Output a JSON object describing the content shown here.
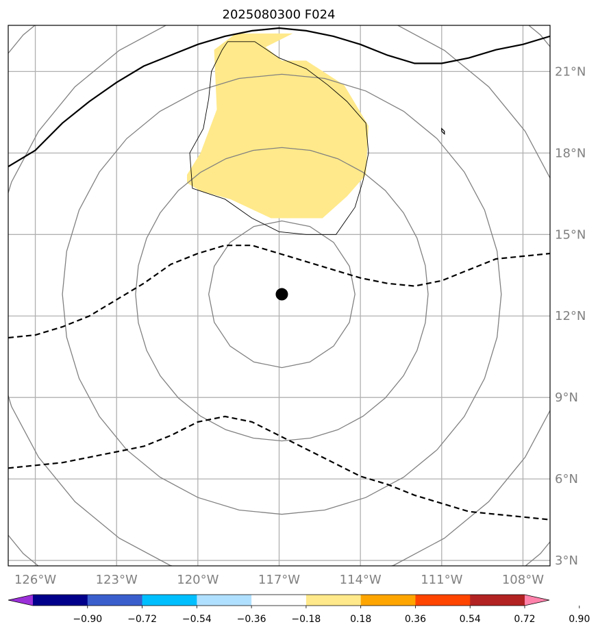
{
  "chart_data": {
    "type": "map-contour",
    "title": "2025080300 F024",
    "projection": "lat-lon",
    "xlim": [
      -127,
      -107
    ],
    "ylim": [
      2.8,
      22.7
    ],
    "lon_ticks": [
      -126,
      -123,
      -120,
      -117,
      -114,
      -111,
      -108
    ],
    "lon_tick_labels": [
      "126°W",
      "123°W",
      "120°W",
      "117°W",
      "114°W",
      "111°W",
      "108°W"
    ],
    "lat_ticks": [
      3,
      6,
      9,
      12,
      15,
      18,
      21
    ],
    "lat_tick_labels": [
      "3°N",
      "6°N",
      "9°N",
      "12°N",
      "15°N",
      "18°N",
      "21°N"
    ],
    "grid": true,
    "center_point": {
      "lon": -116.9,
      "lat": 12.8
    },
    "range_circles_deg": [
      2.7,
      5.4,
      8.1,
      10.8,
      13.5
    ],
    "shaded_region": {
      "level_range": [
        0.18,
        0.36
      ],
      "color": "#ffe98a",
      "outline": [
        [
          -116.5,
          22.4
        ],
        [
          -118.6,
          22.4
        ],
        [
          -119.4,
          21.8
        ],
        [
          -119.3,
          19.6
        ],
        [
          -119.9,
          18.0
        ],
        [
          -120.4,
          17.2
        ],
        [
          -120.4,
          16.9
        ],
        [
          -119.9,
          16.6
        ],
        [
          -118.8,
          16.3
        ],
        [
          -117.3,
          15.6
        ],
        [
          -115.4,
          15.6
        ],
        [
          -114.5,
          16.4
        ],
        [
          -113.8,
          17.2
        ],
        [
          -113.7,
          19.0
        ],
        [
          -114.6,
          20.5
        ],
        [
          -116.0,
          21.4
        ],
        [
          -116.9,
          21.4
        ],
        [
          -117.5,
          21.9
        ]
      ]
    },
    "thin_contour": [
      [
        -118.9,
        22.1
      ],
      [
        -117.9,
        22.1
      ],
      [
        -117.0,
        21.5
      ],
      [
        -116.0,
        21.1
      ],
      [
        -115.2,
        20.5
      ],
      [
        -114.5,
        19.9
      ],
      [
        -113.8,
        19.1
      ],
      [
        -113.7,
        18.0
      ],
      [
        -113.9,
        17.0
      ],
      [
        -114.2,
        16.0
      ],
      [
        -114.9,
        15.0
      ],
      [
        -116.0,
        15.0
      ],
      [
        -117.0,
        15.1
      ],
      [
        -118.0,
        15.6
      ],
      [
        -119.0,
        16.3
      ],
      [
        -119.6,
        16.5
      ],
      [
        -120.2,
        16.7
      ],
      [
        -120.3,
        18.0
      ],
      [
        -119.8,
        18.9
      ],
      [
        -119.6,
        20.0
      ],
      [
        -119.5,
        21.0
      ],
      [
        -119.1,
        21.8
      ]
    ],
    "small_island": [
      [
        -111.0,
        18.8
      ],
      [
        -110.9,
        18.7
      ],
      [
        -110.9,
        18.8
      ],
      [
        -111.0,
        18.9
      ]
    ],
    "solid_black_line": [
      [
        -127.0,
        17.5
      ],
      [
        -126.0,
        18.1
      ],
      [
        -125.0,
        19.1
      ],
      [
        -124.0,
        19.9
      ],
      [
        -123.0,
        20.6
      ],
      [
        -122.0,
        21.2
      ],
      [
        -121.0,
        21.6
      ],
      [
        -120.0,
        22.0
      ],
      [
        -119.0,
        22.3
      ],
      [
        -118.0,
        22.5
      ],
      [
        -117.0,
        22.6
      ],
      [
        -116.0,
        22.5
      ],
      [
        -115.0,
        22.3
      ],
      [
        -114.0,
        22.0
      ],
      [
        -113.0,
        21.6
      ],
      [
        -112.0,
        21.3
      ],
      [
        -111.0,
        21.3
      ],
      [
        -110.0,
        21.5
      ],
      [
        -109.0,
        21.8
      ],
      [
        -108.0,
        22.0
      ],
      [
        -107.0,
        22.3
      ]
    ],
    "dashed_line_north": [
      [
        -127.0,
        11.2
      ],
      [
        -126.0,
        11.3
      ],
      [
        -125.0,
        11.6
      ],
      [
        -124.0,
        12.0
      ],
      [
        -123.0,
        12.6
      ],
      [
        -122.0,
        13.2
      ],
      [
        -121.0,
        13.9
      ],
      [
        -120.0,
        14.3
      ],
      [
        -119.0,
        14.6
      ],
      [
        -118.0,
        14.6
      ],
      [
        -117.0,
        14.3
      ],
      [
        -116.0,
        14.0
      ],
      [
        -115.0,
        13.7
      ],
      [
        -114.0,
        13.4
      ],
      [
        -113.0,
        13.2
      ],
      [
        -112.0,
        13.1
      ],
      [
        -111.0,
        13.3
      ],
      [
        -110.0,
        13.7
      ],
      [
        -109.0,
        14.1
      ],
      [
        -108.0,
        14.2
      ],
      [
        -107.0,
        14.3
      ]
    ],
    "dashed_line_south": [
      [
        -127.0,
        6.4
      ],
      [
        -126.0,
        6.5
      ],
      [
        -125.0,
        6.6
      ],
      [
        -124.0,
        6.8
      ],
      [
        -123.0,
        7.0
      ],
      [
        -122.0,
        7.2
      ],
      [
        -121.0,
        7.6
      ],
      [
        -120.0,
        8.1
      ],
      [
        -119.0,
        8.3
      ],
      [
        -118.0,
        8.1
      ],
      [
        -117.0,
        7.6
      ],
      [
        -116.0,
        7.1
      ],
      [
        -115.0,
        6.6
      ],
      [
        -114.0,
        6.1
      ],
      [
        -113.0,
        5.8
      ],
      [
        -112.0,
        5.4
      ],
      [
        -111.0,
        5.1
      ],
      [
        -110.0,
        4.8
      ],
      [
        -109.0,
        4.7
      ],
      [
        -108.0,
        4.6
      ],
      [
        -107.0,
        4.5
      ]
    ],
    "colorbar": {
      "levels": [
        -0.9,
        -0.72,
        -0.54,
        -0.36,
        -0.18,
        0.18,
        0.36,
        0.54,
        0.72,
        0.9
      ],
      "tick_labels": [
        "−0.90",
        "−0.72",
        "−0.54",
        "−0.36",
        "−0.18",
        "0.18",
        "0.36",
        "0.54",
        "0.72",
        "0.90"
      ],
      "colors": [
        "#9b30d9",
        "#00008b",
        "#3a5fcd",
        "#00bfff",
        "#b0e0ff",
        "#ffffff",
        "#ffe98a",
        "#ffa500",
        "#ff4500",
        "#b22222",
        "#ff82ab"
      ],
      "extend": "both"
    }
  }
}
